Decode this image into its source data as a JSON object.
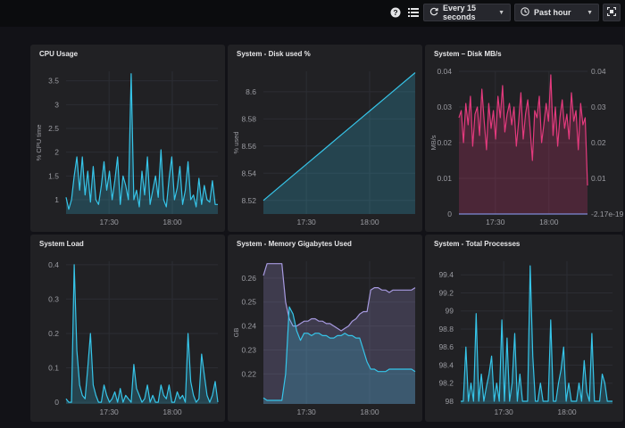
{
  "topbar": {
    "help_icon": "help-circle-icon",
    "list_icon": "list-icon",
    "refresh_label": "Every 15 seconds",
    "time_range_label": "Past hour",
    "fullscreen_icon": "fullscreen-icon"
  },
  "colors": {
    "background": "#121217",
    "panel": "#212124",
    "cyan": "#36c5e9",
    "pink": "#e33a7d",
    "lavender": "#a79ae0"
  },
  "chart_data": [
    {
      "id": "cpu",
      "type": "area",
      "title": "CPU Usage",
      "ylabel": "% CPU time",
      "ylim": [
        0.7,
        3.7
      ],
      "yticks": [
        "1",
        "1.5",
        "2",
        "2.5",
        "3",
        "3.5"
      ],
      "xticks": [
        "17:30",
        "18:00"
      ],
      "xlim": [
        0,
        60
      ],
      "xtick_values": [
        17,
        42
      ],
      "series": [
        {
          "color": "#36c5e9",
          "values": [
            1.05,
            0.8,
            1.0,
            1.5,
            1.9,
            1.2,
            1.9,
            1.1,
            1.6,
            0.95,
            1.7,
            1.0,
            0.9,
            1.3,
            1.8,
            1.2,
            1.6,
            1.0,
            1.4,
            1.9,
            0.9,
            1.5,
            1.3,
            1.0,
            3.65,
            1.0,
            1.2,
            0.85,
            1.6,
            1.1,
            1.9,
            0.9,
            1.2,
            1.5,
            1.05,
            2.05,
            1.0,
            0.85,
            1.45,
            1.9,
            1.0,
            1.25,
            1.7,
            0.9,
            1.2,
            1.8,
            1.0,
            1.1,
            0.85,
            1.45,
            0.9,
            1.3,
            1.0,
            0.95,
            1.4,
            0.9,
            0.9
          ]
        }
      ]
    },
    {
      "id": "disk-used",
      "type": "area",
      "title": "System - Disk used %",
      "ylabel": "% used",
      "ylim": [
        8.51,
        8.615
      ],
      "yticks": [
        "8.52",
        "8.54",
        "8.56",
        "8.58",
        "8.6"
      ],
      "xticks": [
        "17:30",
        "18:00"
      ],
      "xlim": [
        0,
        60
      ],
      "xtick_values": [
        17,
        42
      ],
      "series": [
        {
          "color": "#36c5e9",
          "values": [
            8.52,
            8.5294,
            8.5388,
            8.5482,
            8.5576,
            8.567,
            8.5764,
            8.5858,
            8.5952,
            8.6046,
            8.614
          ]
        }
      ]
    },
    {
      "id": "disk-mbs",
      "type": "area",
      "title": "System – Disk MB/s",
      "ylabel": "MB/s",
      "ylim": [
        0,
        0.04
      ],
      "yticks": [
        "0",
        "0.01",
        "0.02",
        "0.03",
        "0.04"
      ],
      "right_yticks": [
        "-2.17e-19",
        "0.01",
        "0.02",
        "0.03",
        "0.04"
      ],
      "xticks": [
        "17:30",
        "18:00"
      ],
      "xlim": [
        0,
        60
      ],
      "xtick_values": [
        17,
        42
      ],
      "series": [
        {
          "color": "#e33a7d",
          "values": [
            0.027,
            0.029,
            0.02,
            0.031,
            0.025,
            0.033,
            0.019,
            0.028,
            0.03,
            0.022,
            0.035,
            0.026,
            0.018,
            0.031,
            0.024,
            0.029,
            0.021,
            0.033,
            0.027,
            0.036,
            0.023,
            0.028,
            0.031,
            0.025,
            0.03,
            0.019,
            0.026,
            0.034,
            0.021,
            0.028,
            0.032,
            0.024,
            0.015,
            0.029,
            0.027,
            0.033,
            0.02,
            0.025,
            0.031,
            0.026,
            0.039,
            0.022,
            0.03,
            0.019,
            0.027,
            0.032,
            0.024,
            0.028,
            0.021,
            0.034,
            0.026,
            0.029,
            0.018,
            0.031,
            0.025,
            0.027,
            0.008
          ]
        },
        {
          "color": "#7f8ad6",
          "values": [
            0,
            0
          ]
        }
      ]
    },
    {
      "id": "load",
      "type": "area",
      "title": "System Load",
      "ylabel": "",
      "ylim": [
        -0.005,
        0.41
      ],
      "yticks": [
        "0",
        "0.1",
        "0.2",
        "0.3",
        "0.4"
      ],
      "xticks": [
        "17:30",
        "18:00"
      ],
      "xlim": [
        0,
        60
      ],
      "xtick_values": [
        17,
        42
      ],
      "series": [
        {
          "color": "#36c5e9",
          "values": [
            0.01,
            0.0,
            0.0,
            0.4,
            0.15,
            0.05,
            0.02,
            0.01,
            0.1,
            0.2,
            0.05,
            0.02,
            0.0,
            0.0,
            0.05,
            0.02,
            0.0,
            0.01,
            0.03,
            0.0,
            0.04,
            0.0,
            0.02,
            0.01,
            0.0,
            0.11,
            0.04,
            0.02,
            0.0,
            0.01,
            0.05,
            0.0,
            0.02,
            0.0,
            0.0,
            0.05,
            0.02,
            0.01,
            0.05,
            0.0,
            0.0,
            0.03,
            0.01,
            0.02,
            0.0,
            0.2,
            0.06,
            0.02,
            0.0,
            0.01,
            0.14,
            0.08,
            0.02,
            0.0,
            0.02,
            0.06,
            0.0
          ]
        }
      ]
    },
    {
      "id": "memory",
      "type": "area",
      "title": "System - Memory Gigabytes Used",
      "ylabel": "GB",
      "ylim": [
        0.2075,
        0.267
      ],
      "yticks": [
        "0.22",
        "0.23",
        "0.24",
        "0.25",
        "0.26"
      ],
      "xticks": [
        "17:30",
        "18:00"
      ],
      "xlim": [
        0,
        60
      ],
      "xtick_values": [
        17,
        42
      ],
      "series": [
        {
          "color": "#a79ae0",
          "values": [
            0.261,
            0.266,
            0.266,
            0.266,
            0.266,
            0.266,
            0.25,
            0.243,
            0.24,
            0.24,
            0.241,
            0.242,
            0.242,
            0.243,
            0.243,
            0.242,
            0.242,
            0.241,
            0.241,
            0.24,
            0.239,
            0.238,
            0.239,
            0.24,
            0.242,
            0.243,
            0.245,
            0.246,
            0.246,
            0.255,
            0.256,
            0.256,
            0.255,
            0.255,
            0.254,
            0.255,
            0.255,
            0.255,
            0.255,
            0.255,
            0.255,
            0.256
          ]
        },
        {
          "color": "#36c5e9",
          "values": [
            0.21,
            0.209,
            0.209,
            0.209,
            0.209,
            0.209,
            0.22,
            0.248,
            0.245,
            0.238,
            0.234,
            0.237,
            0.237,
            0.236,
            0.237,
            0.237,
            0.236,
            0.236,
            0.235,
            0.235,
            0.236,
            0.236,
            0.237,
            0.236,
            0.236,
            0.235,
            0.235,
            0.23,
            0.225,
            0.222,
            0.222,
            0.221,
            0.221,
            0.221,
            0.222,
            0.222,
            0.222,
            0.222,
            0.222,
            0.222,
            0.222,
            0.221
          ]
        }
      ]
    },
    {
      "id": "processes",
      "type": "area",
      "title": "System - Total Processes",
      "ylabel": "",
      "ylim": [
        97.97,
        99.55
      ],
      "yticks": [
        "98",
        "98.2",
        "98.4",
        "98.6",
        "98.8",
        "99",
        "99.2",
        "99.4"
      ],
      "xticks": [
        "17:30",
        "18:00"
      ],
      "xlim": [
        0,
        60
      ],
      "xtick_values": [
        17,
        42
      ],
      "series": [
        {
          "color": "#36c5e9",
          "values": [
            98,
            98,
            98.6,
            98,
            98.2,
            98,
            98.97,
            98,
            98.3,
            98,
            98.16,
            98.3,
            98.5,
            98,
            98.2,
            98,
            98.9,
            98,
            98.7,
            98,
            98.2,
            98.75,
            98,
            98.3,
            98,
            98,
            98,
            99.5,
            98.5,
            98,
            98,
            98.2,
            98,
            98,
            98,
            98.9,
            98,
            98,
            98.2,
            98.35,
            98.6,
            98,
            98.2,
            98,
            98,
            98,
            98.2,
            98,
            98.45,
            98.1,
            98,
            98.75,
            98,
            98,
            98,
            98.3,
            98.2,
            98,
            98,
            98
          ]
        }
      ]
    }
  ]
}
